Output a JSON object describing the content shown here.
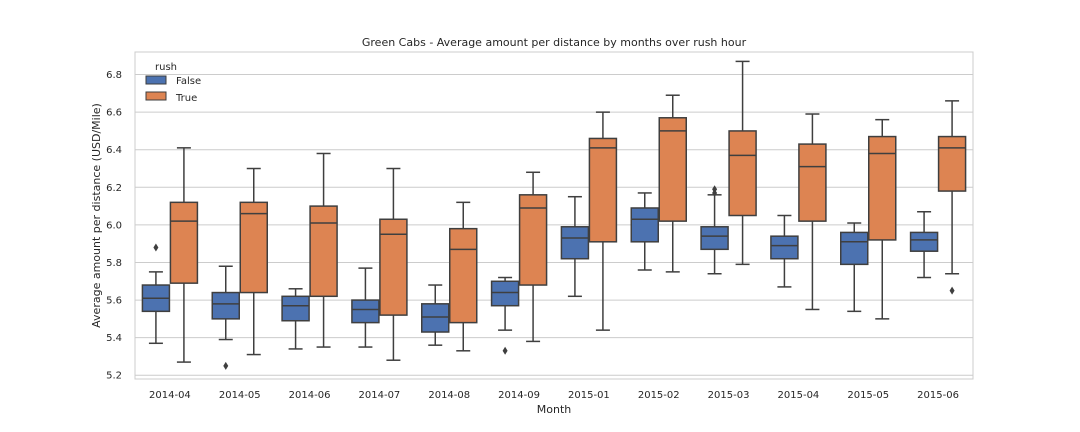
{
  "chart_data": {
    "type": "box",
    "title": "Green Cabs - Average amount per distance by months over rush hour",
    "xlabel": "Month",
    "ylabel": "Average amount per distance (USD/Mile)",
    "ylim": [
      5.18,
      6.92
    ],
    "yticks": [
      5.2,
      5.4,
      5.6,
      5.8,
      6.0,
      6.2,
      6.4,
      6.6,
      6.8
    ],
    "grid": true,
    "legend": {
      "title": "rush",
      "placement": "top-left"
    },
    "categories": [
      "2014-04",
      "2014-05",
      "2014-06",
      "2014-07",
      "2014-08",
      "2014-09",
      "2015-01",
      "2015-02",
      "2015-03",
      "2015-04",
      "2015-05",
      "2015-06"
    ],
    "series": [
      {
        "name": "False",
        "color": "#4c72b0",
        "boxes": [
          {
            "whislo": 5.37,
            "q1": 5.54,
            "med": 5.61,
            "q3": 5.68,
            "whishi": 5.75,
            "fliers": [
              5.88
            ]
          },
          {
            "whislo": 5.39,
            "q1": 5.5,
            "med": 5.58,
            "q3": 5.64,
            "whishi": 5.78,
            "fliers": [
              5.25
            ]
          },
          {
            "whislo": 5.34,
            "q1": 5.49,
            "med": 5.57,
            "q3": 5.62,
            "whishi": 5.66,
            "fliers": []
          },
          {
            "whislo": 5.35,
            "q1": 5.48,
            "med": 5.55,
            "q3": 5.6,
            "whishi": 5.77,
            "fliers": []
          },
          {
            "whislo": 5.36,
            "q1": 5.43,
            "med": 5.51,
            "q3": 5.58,
            "whishi": 5.68,
            "fliers": []
          },
          {
            "whislo": 5.44,
            "q1": 5.57,
            "med": 5.64,
            "q3": 5.7,
            "whishi": 5.72,
            "fliers": [
              5.33
            ]
          },
          {
            "whislo": 5.62,
            "q1": 5.82,
            "med": 5.93,
            "q3": 5.99,
            "whishi": 6.15,
            "fliers": []
          },
          {
            "whislo": 5.76,
            "q1": 5.91,
            "med": 6.03,
            "q3": 6.09,
            "whishi": 6.17,
            "fliers": []
          },
          {
            "whislo": 5.74,
            "q1": 5.87,
            "med": 5.94,
            "q3": 5.99,
            "whishi": 6.16,
            "fliers": [
              6.17,
              6.19
            ]
          },
          {
            "whislo": 5.67,
            "q1": 5.82,
            "med": 5.89,
            "q3": 5.94,
            "whishi": 6.05,
            "fliers": []
          },
          {
            "whislo": 5.54,
            "q1": 5.79,
            "med": 5.91,
            "q3": 5.96,
            "whishi": 6.01,
            "fliers": []
          },
          {
            "whislo": 5.72,
            "q1": 5.86,
            "med": 5.92,
            "q3": 5.96,
            "whishi": 6.07,
            "fliers": []
          }
        ]
      },
      {
        "name": "True",
        "color": "#dd8452",
        "boxes": [
          {
            "whislo": 5.27,
            "q1": 5.69,
            "med": 6.02,
            "q3": 6.12,
            "whishi": 6.41,
            "fliers": []
          },
          {
            "whislo": 5.31,
            "q1": 5.64,
            "med": 6.06,
            "q3": 6.12,
            "whishi": 6.3,
            "fliers": []
          },
          {
            "whislo": 5.35,
            "q1": 5.62,
            "med": 6.01,
            "q3": 6.1,
            "whishi": 6.38,
            "fliers": []
          },
          {
            "whislo": 5.28,
            "q1": 5.52,
            "med": 5.95,
            "q3": 6.03,
            "whishi": 6.3,
            "fliers": []
          },
          {
            "whislo": 5.33,
            "q1": 5.48,
            "med": 5.87,
            "q3": 5.98,
            "whishi": 6.12,
            "fliers": []
          },
          {
            "whislo": 5.38,
            "q1": 5.68,
            "med": 6.09,
            "q3": 6.16,
            "whishi": 6.28,
            "fliers": []
          },
          {
            "whislo": 5.44,
            "q1": 5.91,
            "med": 6.41,
            "q3": 6.46,
            "whishi": 6.6,
            "fliers": []
          },
          {
            "whislo": 5.75,
            "q1": 6.02,
            "med": 6.5,
            "q3": 6.57,
            "whishi": 6.69,
            "fliers": []
          },
          {
            "whislo": 5.79,
            "q1": 6.05,
            "med": 6.37,
            "q3": 6.5,
            "whishi": 6.87,
            "fliers": []
          },
          {
            "whislo": 5.55,
            "q1": 6.02,
            "med": 6.31,
            "q3": 6.43,
            "whishi": 6.59,
            "fliers": []
          },
          {
            "whislo": 5.5,
            "q1": 5.92,
            "med": 6.38,
            "q3": 6.47,
            "whishi": 6.56,
            "fliers": []
          },
          {
            "whislo": 5.74,
            "q1": 6.18,
            "med": 6.41,
            "q3": 6.47,
            "whishi": 6.66,
            "fliers": [
              5.65
            ]
          }
        ]
      }
    ]
  }
}
